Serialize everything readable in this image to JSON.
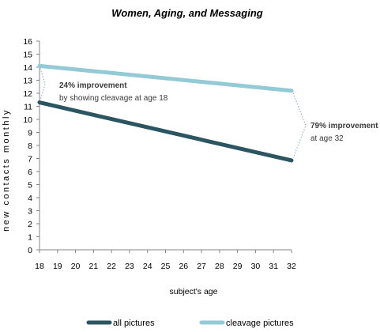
{
  "chart_data": {
    "type": "line",
    "title": "Women, Aging, and Messaging",
    "xlabel": "subject's age",
    "ylabel": "new contacts monthly",
    "x": [
      18,
      19,
      20,
      21,
      22,
      23,
      24,
      25,
      26,
      27,
      28,
      29,
      30,
      31,
      32
    ],
    "xlim": [
      18,
      32
    ],
    "ylim": [
      0,
      16
    ],
    "yticks": [
      0,
      1,
      2,
      3,
      4,
      5,
      6,
      7,
      8,
      9,
      10,
      11,
      12,
      13,
      14,
      15,
      16
    ],
    "grid": false,
    "legend_position": "bottom",
    "series": [
      {
        "name": "all pictures",
        "color": "#2a5561",
        "x": [
          18,
          32
        ],
        "values": [
          11.3,
          6.85
        ]
      },
      {
        "name": "cleavage pictures",
        "color": "#93cad6",
        "x": [
          18,
          32
        ],
        "values": [
          14.1,
          12.2
        ]
      }
    ],
    "annotations": [
      {
        "title": "24% improvement",
        "text": "by showing cleavage at age 18",
        "x": 18,
        "y_range": [
          11.3,
          14.1
        ]
      },
      {
        "title": "79% improvement",
        "text": "at age 32",
        "x": 32,
        "y_range": [
          6.85,
          12.2
        ]
      }
    ]
  }
}
